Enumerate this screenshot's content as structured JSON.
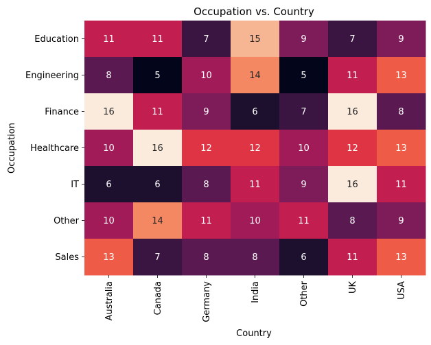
{
  "chart_data": {
    "type": "heatmap",
    "title": "Occupation vs. Country",
    "xlabel": "Country",
    "ylabel": "Occupation",
    "x_categories": [
      "Australia",
      "Canada",
      "Germany",
      "India",
      "Other",
      "UK",
      "USA"
    ],
    "y_categories": [
      "Education",
      "Engineering",
      "Finance",
      "Healthcare",
      "IT",
      "Other",
      "Sales"
    ],
    "values": [
      [
        11,
        11,
        7,
        15,
        9,
        7,
        9
      ],
      [
        8,
        5,
        10,
        14,
        5,
        11,
        13
      ],
      [
        16,
        11,
        9,
        6,
        7,
        16,
        8
      ],
      [
        10,
        16,
        12,
        12,
        10,
        12,
        13
      ],
      [
        6,
        6,
        8,
        11,
        9,
        16,
        11
      ],
      [
        10,
        14,
        11,
        10,
        11,
        8,
        9
      ],
      [
        13,
        7,
        8,
        8,
        6,
        11,
        13
      ]
    ],
    "value_range": [
      5,
      16
    ],
    "colormap": "rocket",
    "annotations": true
  }
}
